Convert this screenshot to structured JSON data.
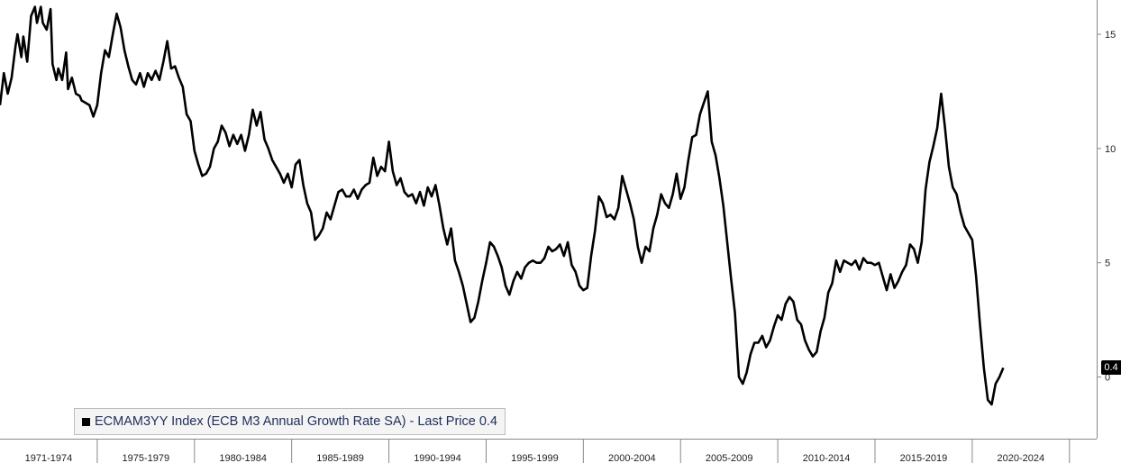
{
  "chart_data": {
    "type": "line",
    "title": "",
    "xlabel": "",
    "ylabel": "",
    "ylim": [
      -2.7,
      16.5
    ],
    "yticks": [
      0,
      5,
      10,
      15
    ],
    "xlim": [
      1970.0,
      2026.4
    ],
    "x_periods": [
      "1971-1974",
      "1975-1979",
      "1980-1984",
      "1985-1989",
      "1990-1994",
      "1995-1999",
      "2000-2004",
      "2005-2009",
      "2010-2014",
      "2015-2019",
      "2020-2024"
    ],
    "x_period_bounds": [
      1970.0,
      1975.0,
      1980.0,
      1985.0,
      1990.0,
      1995.0,
      2000.0,
      2005.0,
      2010.0,
      2015.0,
      2020.0,
      2025.0
    ],
    "series": [
      {
        "name": "ECMAM3YY Index (ECB M3 Annual Growth Rate SA) - Last Price 0.4",
        "color": "#000000",
        "points": [
          [
            1970.0,
            11.9
          ],
          [
            1970.2,
            13.3
          ],
          [
            1970.4,
            12.4
          ],
          [
            1970.6,
            13.1
          ],
          [
            1970.8,
            14.5
          ],
          [
            1970.9,
            15.0
          ],
          [
            1971.1,
            14.0
          ],
          [
            1971.2,
            14.9
          ],
          [
            1971.4,
            13.8
          ],
          [
            1971.6,
            15.8
          ],
          [
            1971.8,
            16.2
          ],
          [
            1971.9,
            15.5
          ],
          [
            1972.1,
            16.2
          ],
          [
            1972.2,
            15.5
          ],
          [
            1972.4,
            15.2
          ],
          [
            1972.6,
            16.1
          ],
          [
            1972.7,
            13.7
          ],
          [
            1972.9,
            13.0
          ],
          [
            1973.0,
            13.5
          ],
          [
            1973.2,
            13.0
          ],
          [
            1973.4,
            14.2
          ],
          [
            1973.5,
            12.6
          ],
          [
            1973.7,
            13.1
          ],
          [
            1973.9,
            12.4
          ],
          [
            1974.1,
            12.3
          ],
          [
            1974.2,
            12.1
          ],
          [
            1974.4,
            12.0
          ],
          [
            1974.6,
            11.9
          ],
          [
            1974.8,
            11.4
          ],
          [
            1975.0,
            11.9
          ],
          [
            1975.2,
            13.3
          ],
          [
            1975.4,
            14.3
          ],
          [
            1975.6,
            14.0
          ],
          [
            1975.8,
            15.0
          ],
          [
            1976.0,
            15.9
          ],
          [
            1976.2,
            15.3
          ],
          [
            1976.4,
            14.3
          ],
          [
            1976.6,
            13.6
          ],
          [
            1976.8,
            13.0
          ],
          [
            1977.0,
            12.8
          ],
          [
            1977.2,
            13.3
          ],
          [
            1977.4,
            12.7
          ],
          [
            1977.6,
            13.3
          ],
          [
            1977.8,
            13.0
          ],
          [
            1978.0,
            13.4
          ],
          [
            1978.2,
            13.0
          ],
          [
            1978.4,
            13.8
          ],
          [
            1978.6,
            14.7
          ],
          [
            1978.8,
            13.5
          ],
          [
            1979.0,
            13.6
          ],
          [
            1979.2,
            13.1
          ],
          [
            1979.4,
            12.7
          ],
          [
            1979.6,
            11.5
          ],
          [
            1979.8,
            11.2
          ],
          [
            1980.0,
            9.9
          ],
          [
            1980.2,
            9.3
          ],
          [
            1980.4,
            8.8
          ],
          [
            1980.6,
            8.9
          ],
          [
            1980.8,
            9.2
          ],
          [
            1981.0,
            10.0
          ],
          [
            1981.2,
            10.3
          ],
          [
            1981.4,
            11.0
          ],
          [
            1981.6,
            10.7
          ],
          [
            1981.8,
            10.1
          ],
          [
            1982.0,
            10.6
          ],
          [
            1982.2,
            10.2
          ],
          [
            1982.4,
            10.6
          ],
          [
            1982.6,
            9.9
          ],
          [
            1982.8,
            10.6
          ],
          [
            1983.0,
            11.7
          ],
          [
            1983.2,
            11.0
          ],
          [
            1983.4,
            11.6
          ],
          [
            1983.6,
            10.4
          ],
          [
            1983.8,
            10.0
          ],
          [
            1984.0,
            9.5
          ],
          [
            1984.2,
            9.2
          ],
          [
            1984.4,
            8.9
          ],
          [
            1984.6,
            8.5
          ],
          [
            1984.8,
            8.9
          ],
          [
            1985.0,
            8.3
          ],
          [
            1985.2,
            9.3
          ],
          [
            1985.4,
            9.5
          ],
          [
            1985.6,
            8.4
          ],
          [
            1985.8,
            7.6
          ],
          [
            1986.0,
            7.2
          ],
          [
            1986.2,
            6.0
          ],
          [
            1986.4,
            6.2
          ],
          [
            1986.6,
            6.5
          ],
          [
            1986.8,
            7.2
          ],
          [
            1987.0,
            6.9
          ],
          [
            1987.2,
            7.5
          ],
          [
            1987.4,
            8.1
          ],
          [
            1987.6,
            8.2
          ],
          [
            1987.8,
            7.9
          ],
          [
            1988.0,
            7.9
          ],
          [
            1988.2,
            8.2
          ],
          [
            1988.4,
            7.8
          ],
          [
            1988.6,
            8.2
          ],
          [
            1988.8,
            8.4
          ],
          [
            1989.0,
            8.5
          ],
          [
            1989.2,
            9.6
          ],
          [
            1989.4,
            8.8
          ],
          [
            1989.6,
            9.2
          ],
          [
            1989.8,
            9.0
          ],
          [
            1990.0,
            10.3
          ],
          [
            1990.2,
            9.0
          ],
          [
            1990.4,
            8.4
          ],
          [
            1990.6,
            8.7
          ],
          [
            1990.8,
            8.1
          ],
          [
            1991.0,
            7.9
          ],
          [
            1991.2,
            8.0
          ],
          [
            1991.4,
            7.6
          ],
          [
            1991.6,
            8.1
          ],
          [
            1991.8,
            7.5
          ],
          [
            1992.0,
            8.3
          ],
          [
            1992.2,
            7.9
          ],
          [
            1992.4,
            8.4
          ],
          [
            1992.6,
            7.5
          ],
          [
            1992.8,
            6.5
          ],
          [
            1993.0,
            5.8
          ],
          [
            1993.2,
            6.5
          ],
          [
            1993.4,
            5.1
          ],
          [
            1993.6,
            4.6
          ],
          [
            1993.8,
            4.0
          ],
          [
            1994.0,
            3.2
          ],
          [
            1994.2,
            2.4
          ],
          [
            1994.4,
            2.6
          ],
          [
            1994.6,
            3.3
          ],
          [
            1994.8,
            4.2
          ],
          [
            1995.0,
            5.0
          ],
          [
            1995.2,
            5.9
          ],
          [
            1995.4,
            5.7
          ],
          [
            1995.6,
            5.3
          ],
          [
            1995.8,
            4.8
          ],
          [
            1996.0,
            4.0
          ],
          [
            1996.2,
            3.6
          ],
          [
            1996.4,
            4.2
          ],
          [
            1996.6,
            4.6
          ],
          [
            1996.8,
            4.3
          ],
          [
            1997.0,
            4.8
          ],
          [
            1997.2,
            5.0
          ],
          [
            1997.4,
            5.1
          ],
          [
            1997.6,
            5.0
          ],
          [
            1997.8,
            5.0
          ],
          [
            1998.0,
            5.2
          ],
          [
            1998.2,
            5.7
          ],
          [
            1998.4,
            5.5
          ],
          [
            1998.6,
            5.6
          ],
          [
            1998.8,
            5.8
          ],
          [
            1999.0,
            5.3
          ],
          [
            1999.2,
            5.9
          ],
          [
            1999.4,
            4.9
          ],
          [
            1999.6,
            4.6
          ],
          [
            1999.8,
            4.0
          ],
          [
            2000.0,
            3.8
          ],
          [
            2000.2,
            3.9
          ],
          [
            2000.4,
            5.3
          ],
          [
            2000.6,
            6.4
          ],
          [
            2000.8,
            7.9
          ],
          [
            2001.0,
            7.6
          ],
          [
            2001.2,
            7.0
          ],
          [
            2001.4,
            7.1
          ],
          [
            2001.6,
            6.9
          ],
          [
            2001.8,
            7.4
          ],
          [
            2002.0,
            8.8
          ],
          [
            2002.2,
            8.2
          ],
          [
            2002.4,
            7.6
          ],
          [
            2002.6,
            6.9
          ],
          [
            2002.8,
            5.7
          ],
          [
            2003.0,
            5.0
          ],
          [
            2003.2,
            5.7
          ],
          [
            2003.4,
            5.5
          ],
          [
            2003.6,
            6.5
          ],
          [
            2003.8,
            7.1
          ],
          [
            2004.0,
            8.0
          ],
          [
            2004.2,
            7.6
          ],
          [
            2004.4,
            7.4
          ],
          [
            2004.6,
            8.0
          ],
          [
            2004.8,
            8.9
          ],
          [
            2005.0,
            7.8
          ],
          [
            2005.2,
            8.3
          ],
          [
            2005.4,
            9.5
          ],
          [
            2005.6,
            10.5
          ],
          [
            2005.8,
            10.6
          ],
          [
            2006.0,
            11.5
          ],
          [
            2006.2,
            12.0
          ],
          [
            2006.4,
            12.5
          ],
          [
            2006.6,
            10.3
          ],
          [
            2006.8,
            9.7
          ],
          [
            2007.0,
            8.7
          ],
          [
            2007.2,
            7.5
          ],
          [
            2007.4,
            5.9
          ],
          [
            2007.6,
            4.3
          ],
          [
            2007.8,
            2.8
          ],
          [
            2008.0,
            0.0
          ],
          [
            2008.2,
            -0.3
          ],
          [
            2008.4,
            0.2
          ],
          [
            2008.6,
            1.0
          ],
          [
            2008.8,
            1.5
          ],
          [
            2009.0,
            1.5
          ],
          [
            2009.2,
            1.8
          ],
          [
            2009.4,
            1.3
          ],
          [
            2009.6,
            1.6
          ],
          [
            2009.8,
            2.2
          ],
          [
            2010.0,
            2.7
          ],
          [
            2010.2,
            2.5
          ],
          [
            2010.4,
            3.2
          ],
          [
            2010.6,
            3.5
          ],
          [
            2010.8,
            3.3
          ],
          [
            2011.0,
            2.5
          ],
          [
            2011.2,
            2.3
          ],
          [
            2011.4,
            1.6
          ],
          [
            2011.6,
            1.2
          ],
          [
            2011.8,
            0.9
          ],
          [
            2012.0,
            1.1
          ],
          [
            2012.2,
            2.0
          ],
          [
            2012.4,
            2.6
          ],
          [
            2012.6,
            3.7
          ],
          [
            2012.8,
            4.1
          ],
          [
            2013.0,
            5.1
          ],
          [
            2013.2,
            4.6
          ],
          [
            2013.4,
            5.1
          ],
          [
            2013.6,
            5.0
          ],
          [
            2013.8,
            4.9
          ],
          [
            2014.0,
            5.1
          ],
          [
            2014.2,
            4.7
          ],
          [
            2014.4,
            5.2
          ],
          [
            2014.6,
            5.0
          ],
          [
            2014.8,
            5.0
          ],
          [
            2015.0,
            4.9
          ],
          [
            2015.2,
            5.0
          ],
          [
            2015.4,
            4.4
          ],
          [
            2015.6,
            3.8
          ],
          [
            2015.8,
            4.5
          ],
          [
            2016.0,
            3.9
          ],
          [
            2016.2,
            4.2
          ],
          [
            2016.4,
            4.6
          ],
          [
            2016.6,
            4.9
          ],
          [
            2016.8,
            5.8
          ],
          [
            2017.0,
            5.6
          ],
          [
            2017.2,
            5.0
          ],
          [
            2017.4,
            5.9
          ],
          [
            2017.6,
            8.2
          ],
          [
            2017.8,
            9.4
          ],
          [
            2018.0,
            10.1
          ],
          [
            2018.2,
            10.9
          ],
          [
            2018.4,
            12.4
          ],
          [
            2018.6,
            10.9
          ],
          [
            2018.8,
            9.2
          ],
          [
            2019.0,
            8.3
          ],
          [
            2019.2,
            8.0
          ],
          [
            2019.4,
            7.2
          ],
          [
            2019.6,
            6.6
          ],
          [
            2019.8,
            6.3
          ],
          [
            2020.0,
            6.0
          ],
          [
            2020.2,
            4.4
          ],
          [
            2020.4,
            2.3
          ],
          [
            2020.6,
            0.4
          ],
          [
            2020.8,
            -1.0
          ],
          [
            2021.0,
            -1.2
          ],
          [
            2021.2,
            -0.3
          ],
          [
            2021.4,
            0.0
          ],
          [
            2021.6,
            0.4
          ]
        ]
      }
    ],
    "legend": {
      "text": "ECMAM3YY Index (ECB M3 Annual Growth Rate SA) - Last Price 0.4",
      "placement": "bottom-left"
    },
    "last_price_label": "0.4",
    "last_price_value": 0.4,
    "grid": false
  }
}
